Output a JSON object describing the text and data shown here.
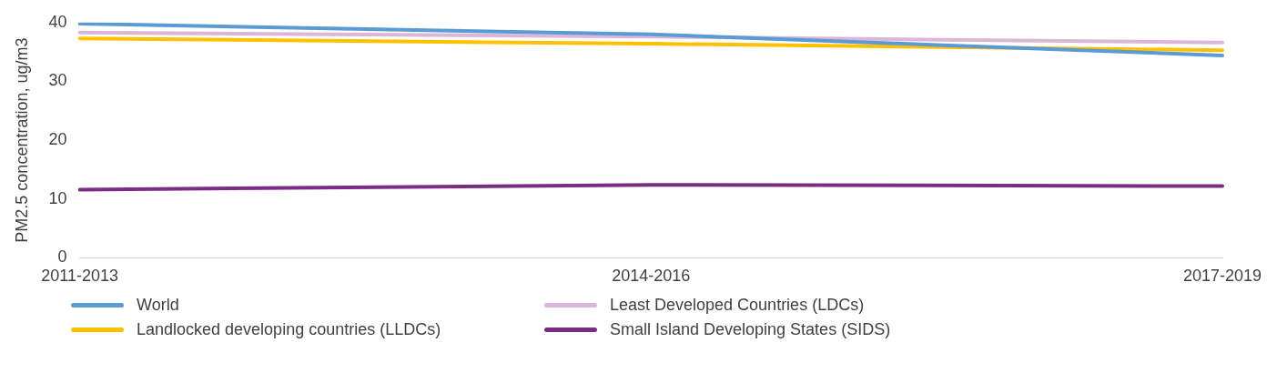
{
  "chart_data": {
    "type": "line",
    "ylabel": "PM2.5 concentration, ug/m3",
    "categories": [
      "2011-2013",
      "2014-2016",
      "2017-2019"
    ],
    "series": [
      {
        "name": "World",
        "color": "#5b9bd5",
        "values": [
          39.8,
          38.0,
          34.4
        ]
      },
      {
        "name": "Least Developed Countries (LDCs)",
        "color": "#dbb6d8",
        "values": [
          38.3,
          37.6,
          36.6
        ]
      },
      {
        "name": "Landlocked developing countries (LLDCs)",
        "color": "#ffc000",
        "values": [
          37.3,
          36.4,
          35.3
        ]
      },
      {
        "name": "Small Island Developing States (SIDS)",
        "color": "#7b2c84",
        "values": [
          11.6,
          12.4,
          12.2
        ]
      }
    ],
    "ylim": [
      0,
      40
    ],
    "yticks": [
      0,
      10,
      20,
      30,
      40
    ],
    "grid": false,
    "legend": "bottom",
    "marker": "none",
    "line_style": "solid"
  }
}
